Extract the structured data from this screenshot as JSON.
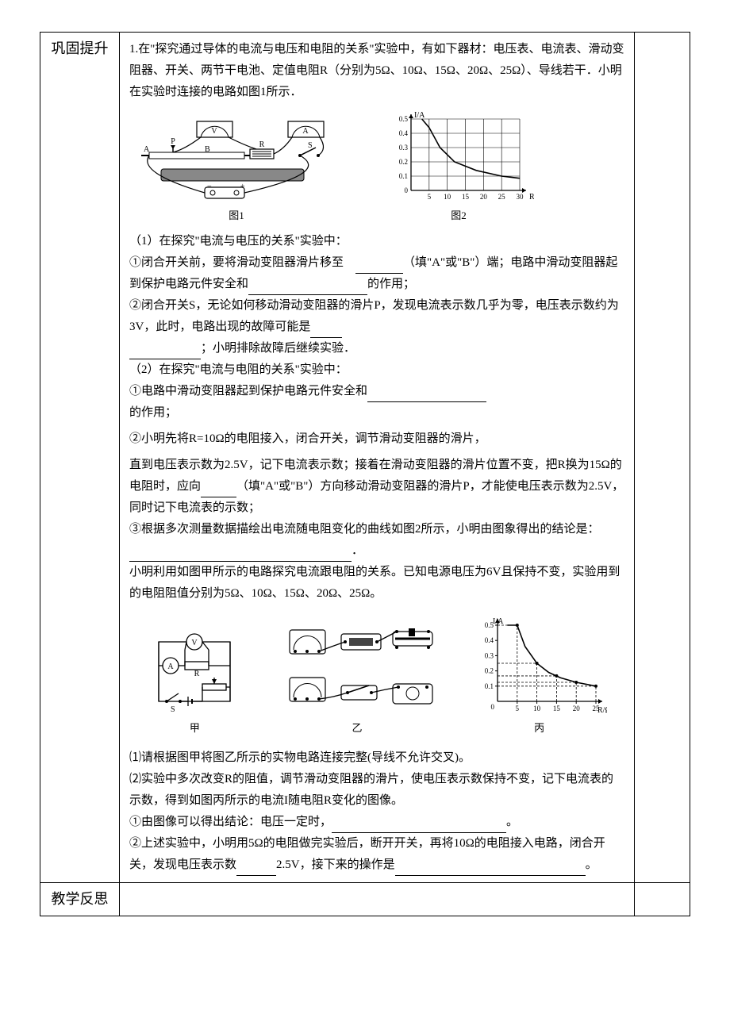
{
  "leftLabels": {
    "section1": "巩固提升",
    "section2": "教学反思"
  },
  "problem1": {
    "intro": "1.在\"探究通过导体的电流与电压和电阻的关系\"实验中，有如下器材：电压表、电流表、滑动变阻器、开关、两节干电池、定值电阻R（分别为5Ω、10Ω、15Ω、20Ω、25Ω）、导线若干．小明在实验时连接的电路如图1所示．",
    "fig1Caption": "图1",
    "fig2Caption": "图2",
    "part1Header": "（1）在探究\"电流与电压的关系\"实验中：",
    "item1a_pre": "①闭合开关前，要将滑动变阻器滑片移至　",
    "item1a_post": "（填\"A\"或\"B\"）端；电路中滑动变阻器起到保护电路元件安全和",
    "item1a_end": "的作用；",
    "item1b_pre": "②闭合开关S，无论如何移动滑动变阻器的滑片P，发现电流表示数几乎为零，电压表示数约为3V，此时，电路出现的故障可能是",
    "item1b_end": "；小明排除故障后继续实验．",
    "part2Header": "（2）在探究\"电流与电阻的关系\"实验中：",
    "item2a_pre": "①电路中滑动变阻器起到保护电路元件安全和",
    "item2a_end": "的作用；",
    "item2b_pre": "②小明先将R=10Ω的电阻接入，闭合开关，调节滑动变阻器的滑片，",
    "item2b_mid1": "直到电压表示数为2.5V，记下电流表示数；接着在滑动变阻器的滑片位置不变，把R换为15Ω的电阻时，应向",
    "item2b_mid2": "（填\"A\"或\"B\"）方向移动滑动变阻器的滑片P，才能使电压表示数为2.5V，同时记下电流表的示数；",
    "item2c_pre": "③根据多次测量数据描绘出电流随电阻变化的曲线如图2所示，小明由图象得出的结论是：",
    "item2c_end": "．"
  },
  "problem2": {
    "intro": "小明利用如图甲所示的电路探究电流跟电阻的关系。已知电源电压为6V且保持不变，实验用到的电阻阻值分别为5Ω、10Ω、15Ω、20Ω、25Ω。",
    "figACaption": "甲",
    "figBCaption": "乙",
    "figCCaption": "丙",
    "q1": "⑴请根据图甲将图乙所示的实物电路连接完整(导线不允许交叉)。",
    "q2_intro": "⑵实验中多次改变R的阻值，调节滑动变阻器的滑片，使电压表示数保持不变，记下电流表的示数，得到如图丙所示的电流I随电阻R变化的图像。",
    "q2a_pre": "①由图像可以得出结论：电压一定时，",
    "q2a_end": "。",
    "q2b_pre": "②上述实验中，小明用5Ω的电阻做完实验后，断开开关，再将10Ω的电阻接入电路，闭合开关，发现电压表示数",
    "q2b_mid": "2.5V，接下来的操作是",
    "q2b_end": "。"
  },
  "chart1": {
    "ylabel": "I/A",
    "xlabel": "R/Ω",
    "yticks": [
      "0",
      "0.1",
      "0.2",
      "0.3",
      "0.4",
      "0.5"
    ],
    "xticks": [
      "0",
      "5",
      "10",
      "15",
      "20",
      "25",
      "30"
    ],
    "curve": [
      [
        3,
        0.5
      ],
      [
        5,
        0.44
      ],
      [
        8,
        0.3
      ],
      [
        12,
        0.2
      ],
      [
        18,
        0.14
      ],
      [
        25,
        0.1
      ],
      [
        30,
        0.085
      ]
    ],
    "stroke": "#000000",
    "grid": "#000000",
    "bg": "#ffffff"
  },
  "chart2": {
    "ylabel": "I/A",
    "xlabel": "R/Ω",
    "yticks": [
      "0",
      "0.1",
      "0.2",
      "0.3",
      "0.4",
      "0.5"
    ],
    "xticks": [
      "0",
      "5",
      "10",
      "15",
      "20",
      "25"
    ],
    "points": [
      [
        5,
        0.5
      ],
      [
        10,
        0.25
      ],
      [
        15,
        0.167
      ],
      [
        20,
        0.125
      ],
      [
        25,
        0.1
      ]
    ],
    "curve": [
      [
        2.5,
        0.5
      ],
      [
        5,
        0.5
      ],
      [
        7,
        0.36
      ],
      [
        10,
        0.25
      ],
      [
        13,
        0.19
      ],
      [
        16,
        0.155
      ],
      [
        20,
        0.125
      ],
      [
        25,
        0.1
      ]
    ],
    "stroke": "#000000",
    "dash_color": "#000000",
    "bg": "#ffffff"
  },
  "circuit1": {
    "labels": {
      "A": "A",
      "P": "P",
      "B": "B",
      "R": "R",
      "S": "S",
      "V": "V",
      "Amm": "A",
      "plus": "+",
      "minus": "−"
    }
  },
  "circuit2a": {
    "labels": {
      "V": "V",
      "A": "A",
      "R": "R",
      "S": "S"
    }
  }
}
